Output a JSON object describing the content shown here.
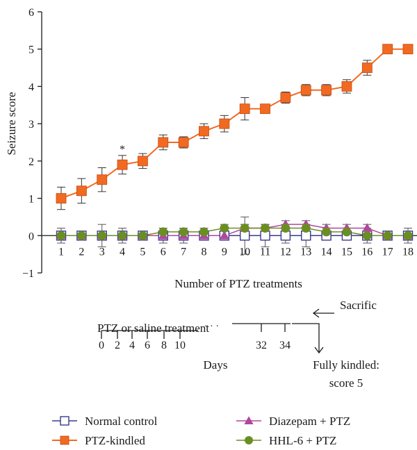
{
  "chart_data": {
    "type": "line",
    "ylabel": "Seizure score",
    "xlabel": "Number of PTZ treatments",
    "ylim": [
      -1,
      6
    ],
    "yticks": [
      -1,
      0,
      1,
      2,
      3,
      4,
      5,
      6
    ],
    "x": [
      1,
      2,
      3,
      4,
      5,
      6,
      7,
      8,
      9,
      10,
      11,
      12,
      13,
      14,
      15,
      16,
      17,
      18
    ],
    "x_tick_labels": [
      "1",
      "2",
      "3",
      "4",
      "5",
      "6",
      "7",
      "8",
      "9",
      "10",
      "11",
      "12",
      "13",
      "14",
      "15",
      "16",
      "17",
      "18"
    ],
    "grid": false,
    "legend_position": "bottom",
    "annotations": [
      {
        "text": "*",
        "x": 4
      }
    ],
    "series": [
      {
        "name": "Normal control",
        "marker": "open-square",
        "color": "#3a3a8c",
        "values": [
          0,
          0,
          0,
          0,
          0,
          0,
          0,
          0,
          0,
          0,
          0,
          0,
          0,
          0,
          0,
          0,
          0,
          0
        ],
        "errors": [
          0.2,
          0.1,
          0.3,
          0.2,
          0.1,
          0.2,
          0.2,
          0.1,
          0.1,
          0.5,
          0.3,
          0.2,
          0.3,
          0.1,
          0.1,
          0.2,
          0.1,
          0.2
        ]
      },
      {
        "name": "PTZ-kindled",
        "marker": "filled-square",
        "color": "#f26a21",
        "values": [
          1,
          1.2,
          1.5,
          1.9,
          2,
          2.5,
          2.5,
          2.8,
          3,
          3.4,
          3.4,
          3.7,
          3.9,
          3.9,
          4,
          4.5,
          5,
          5
        ],
        "errors": [
          0.3,
          0.33,
          0.32,
          0.25,
          0.2,
          0.2,
          0.15,
          0.2,
          0.22,
          0.3,
          0.12,
          0.15,
          0.15,
          0.15,
          0.18,
          0.2,
          0.07,
          0.07
        ]
      },
      {
        "name": "Diazepam + PTZ",
        "marker": "triangle",
        "color": "#b0479e",
        "values": [
          0,
          0,
          0,
          0,
          0,
          0,
          0,
          0,
          0,
          0.2,
          0.2,
          0.3,
          0.3,
          0.2,
          0.2,
          0.2,
          0,
          0
        ],
        "errors": [
          0,
          0,
          0,
          0,
          0,
          0,
          0,
          0,
          0,
          0.1,
          0.1,
          0.1,
          0.1,
          0.1,
          0.1,
          0.1,
          0,
          0
        ]
      },
      {
        "name": "HHL-6 + PTZ",
        "marker": "circle",
        "color": "#6b8e23",
        "values": [
          0,
          0,
          0,
          0,
          0,
          0.1,
          0.1,
          0.1,
          0.2,
          0.2,
          0.2,
          0.2,
          0.2,
          0.1,
          0.1,
          0,
          0,
          0
        ],
        "errors": [
          0,
          0,
          0,
          0,
          0,
          0.1,
          0.1,
          0.1,
          0.1,
          0.1,
          0.1,
          0.1,
          0.1,
          0.1,
          0.1,
          0.1,
          0,
          0
        ]
      }
    ]
  },
  "timeline": {
    "label": "PTZ or saline treatment",
    "day_ticks": [
      "0",
      "2",
      "4",
      "6",
      "8",
      "10",
      "32",
      "34"
    ],
    "ellipsis": "· · ·",
    "days_label": "Days",
    "sacrifice_label": "Sacrific",
    "fully_kindled_line1": "Fully kindled:",
    "fully_kindled_line2": "score 5"
  }
}
